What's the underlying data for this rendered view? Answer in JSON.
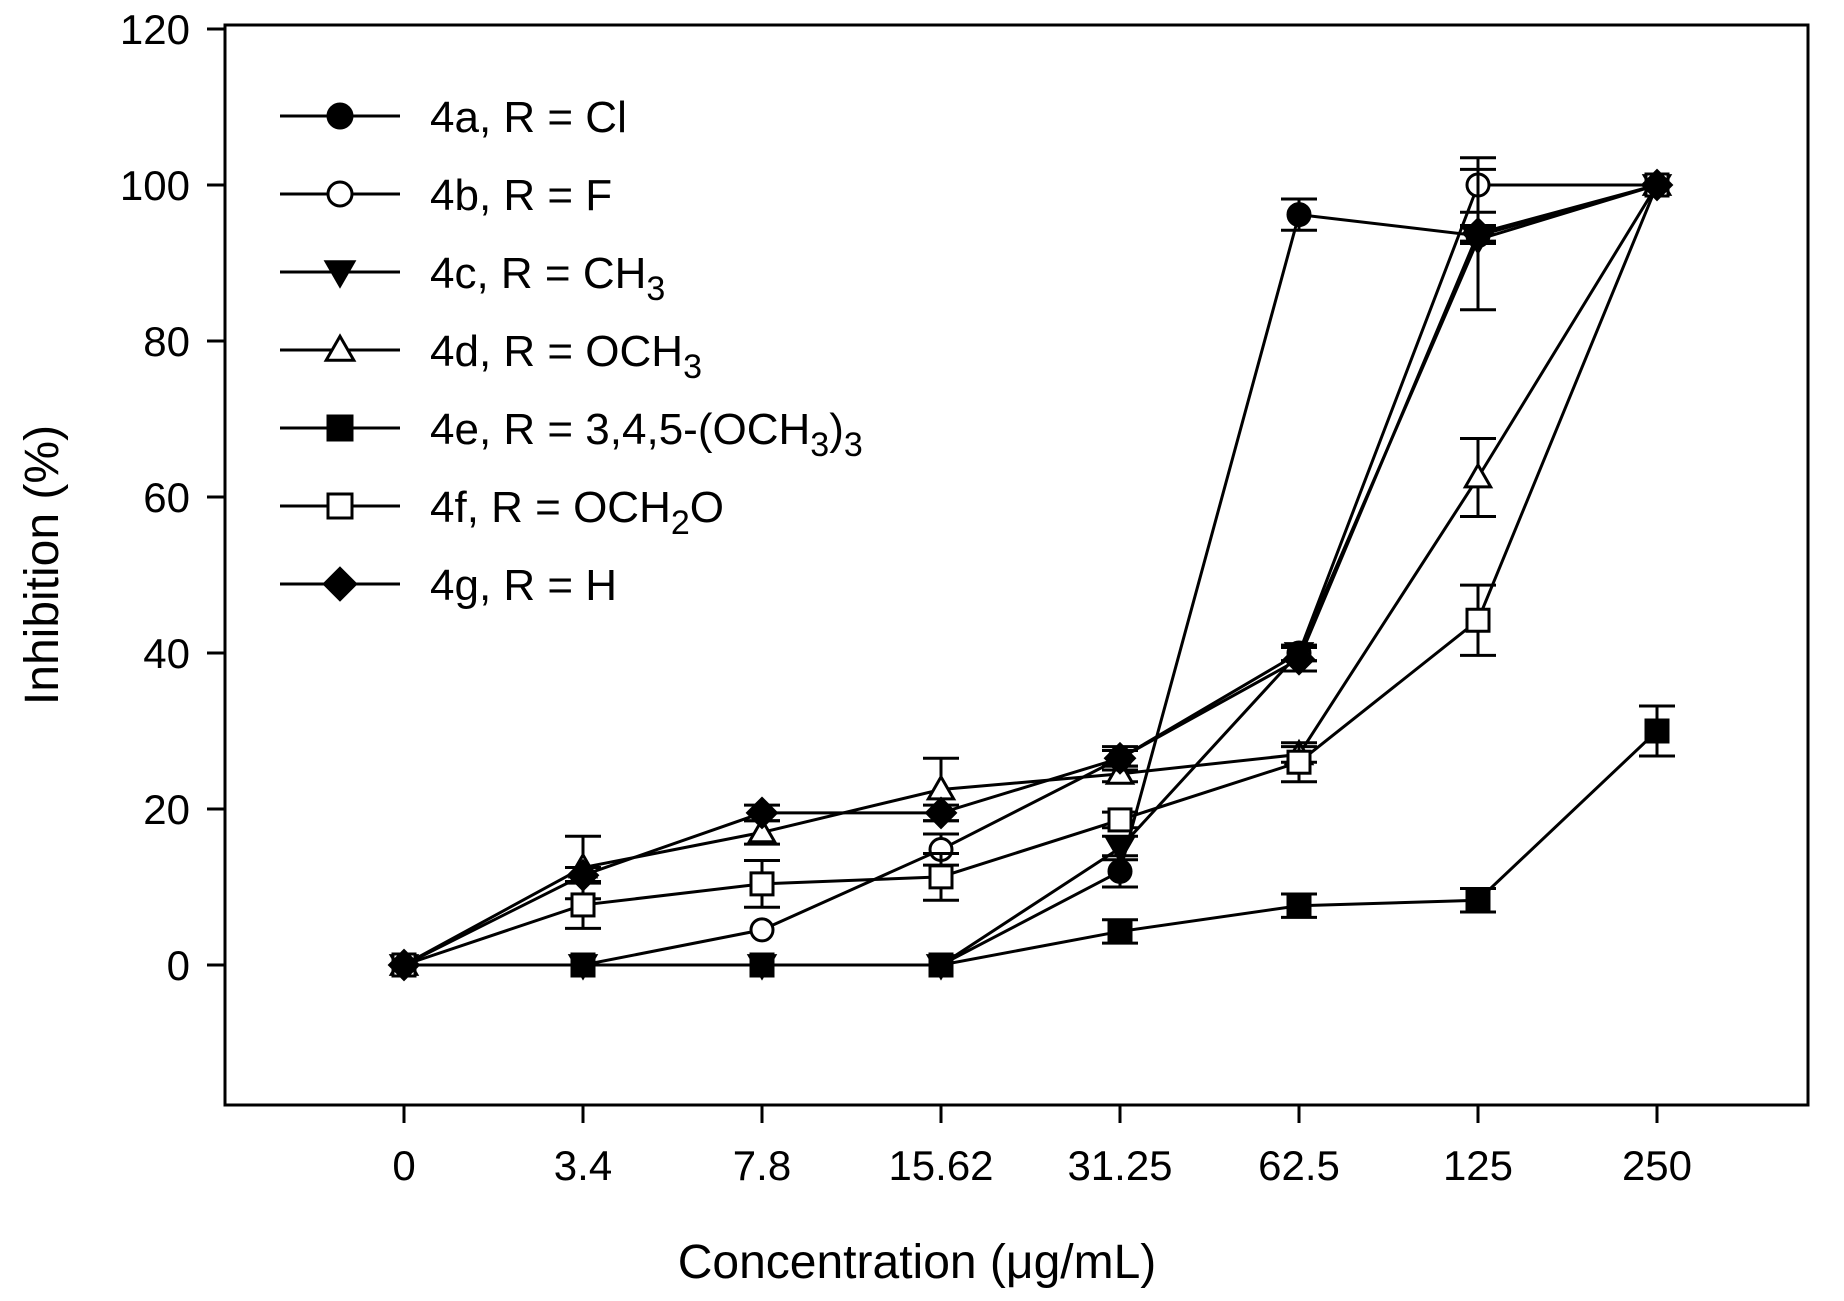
{
  "chart_data": {
    "type": "line",
    "title": "",
    "xlabel": "Concentration (μg/mL)",
    "ylabel": "Inhibition (%)",
    "categories": [
      "0",
      "3.4",
      "7.8",
      "15.62",
      "31.25",
      "62.5",
      "125",
      "250"
    ],
    "ylim": [
      -18,
      120
    ],
    "yticks": [
      0,
      20,
      40,
      60,
      80,
      100,
      120
    ],
    "grid": false,
    "legend_position": "top-left",
    "series": [
      {
        "name": "4a, R = Cl",
        "label_parts": [
          {
            "t": "4a, R = Cl"
          }
        ],
        "marker": "circle-filled",
        "values": [
          0,
          0,
          0,
          0,
          12,
          96.2,
          93.5,
          100
        ],
        "errors": [
          0,
          0,
          0,
          0,
          2,
          2,
          1,
          0
        ]
      },
      {
        "name": "4b, R = F",
        "label_parts": [
          {
            "t": "4b, R = F"
          }
        ],
        "marker": "circle-open",
        "values": [
          0,
          0,
          4.5,
          14.8,
          26.5,
          40,
          100,
          100
        ],
        "errors": [
          0,
          0,
          0,
          2,
          1,
          1,
          3.5,
          0
        ]
      },
      {
        "name": "4c, R = CH3",
        "label_parts": [
          {
            "t": "4c, R = CH"
          },
          {
            "t": "3",
            "sub": true
          }
        ],
        "marker": "triangle-down-filled",
        "values": [
          0,
          0,
          0,
          0,
          15,
          40,
          93,
          100
        ],
        "errors": [
          0,
          0,
          0,
          0,
          1.5,
          1,
          9,
          0
        ]
      },
      {
        "name": "4d, R = OCH3",
        "label_parts": [
          {
            "t": "4d, R = OCH"
          },
          {
            "t": "3",
            "sub": true
          }
        ],
        "marker": "triangle-up-open",
        "values": [
          0,
          12.5,
          17,
          22.5,
          24.5,
          27,
          62.5,
          100
        ],
        "errors": [
          0,
          4,
          1.5,
          4,
          1,
          1,
          5,
          0
        ]
      },
      {
        "name": "4e, R = 3,4,5-(OCH3)3",
        "label_parts": [
          {
            "t": "4e, R = 3,4,5-(OCH"
          },
          {
            "t": "3",
            "sub": true
          },
          {
            "t": ")"
          },
          {
            "t": "3",
            "sub": true
          }
        ],
        "marker": "square-filled",
        "values": [
          0,
          0,
          0,
          0,
          4.3,
          7.6,
          8.3,
          30
        ],
        "errors": [
          0,
          0,
          0,
          0,
          1.5,
          1.5,
          1.5,
          3.2
        ]
      },
      {
        "name": "4f, R = OCH2O",
        "label_parts": [
          {
            "t": "4f, R = OCH"
          },
          {
            "t": "2",
            "sub": true
          },
          {
            "t": "O"
          }
        ],
        "marker": "square-open",
        "values": [
          0,
          7.7,
          10.4,
          11.3,
          18.6,
          26,
          44.2,
          100
        ],
        "errors": [
          0,
          3,
          3,
          3,
          1,
          2.5,
          4.5,
          0
        ]
      },
      {
        "name": "4g, R = H",
        "label_parts": [
          {
            "t": "4g, R = H"
          }
        ],
        "marker": "diamond-filled",
        "values": [
          0,
          11.5,
          19.5,
          19.5,
          26.5,
          39.2,
          93.8,
          100
        ],
        "errors": [
          0,
          1,
          1,
          1,
          1.5,
          1.5,
          1,
          0
        ]
      }
    ]
  }
}
